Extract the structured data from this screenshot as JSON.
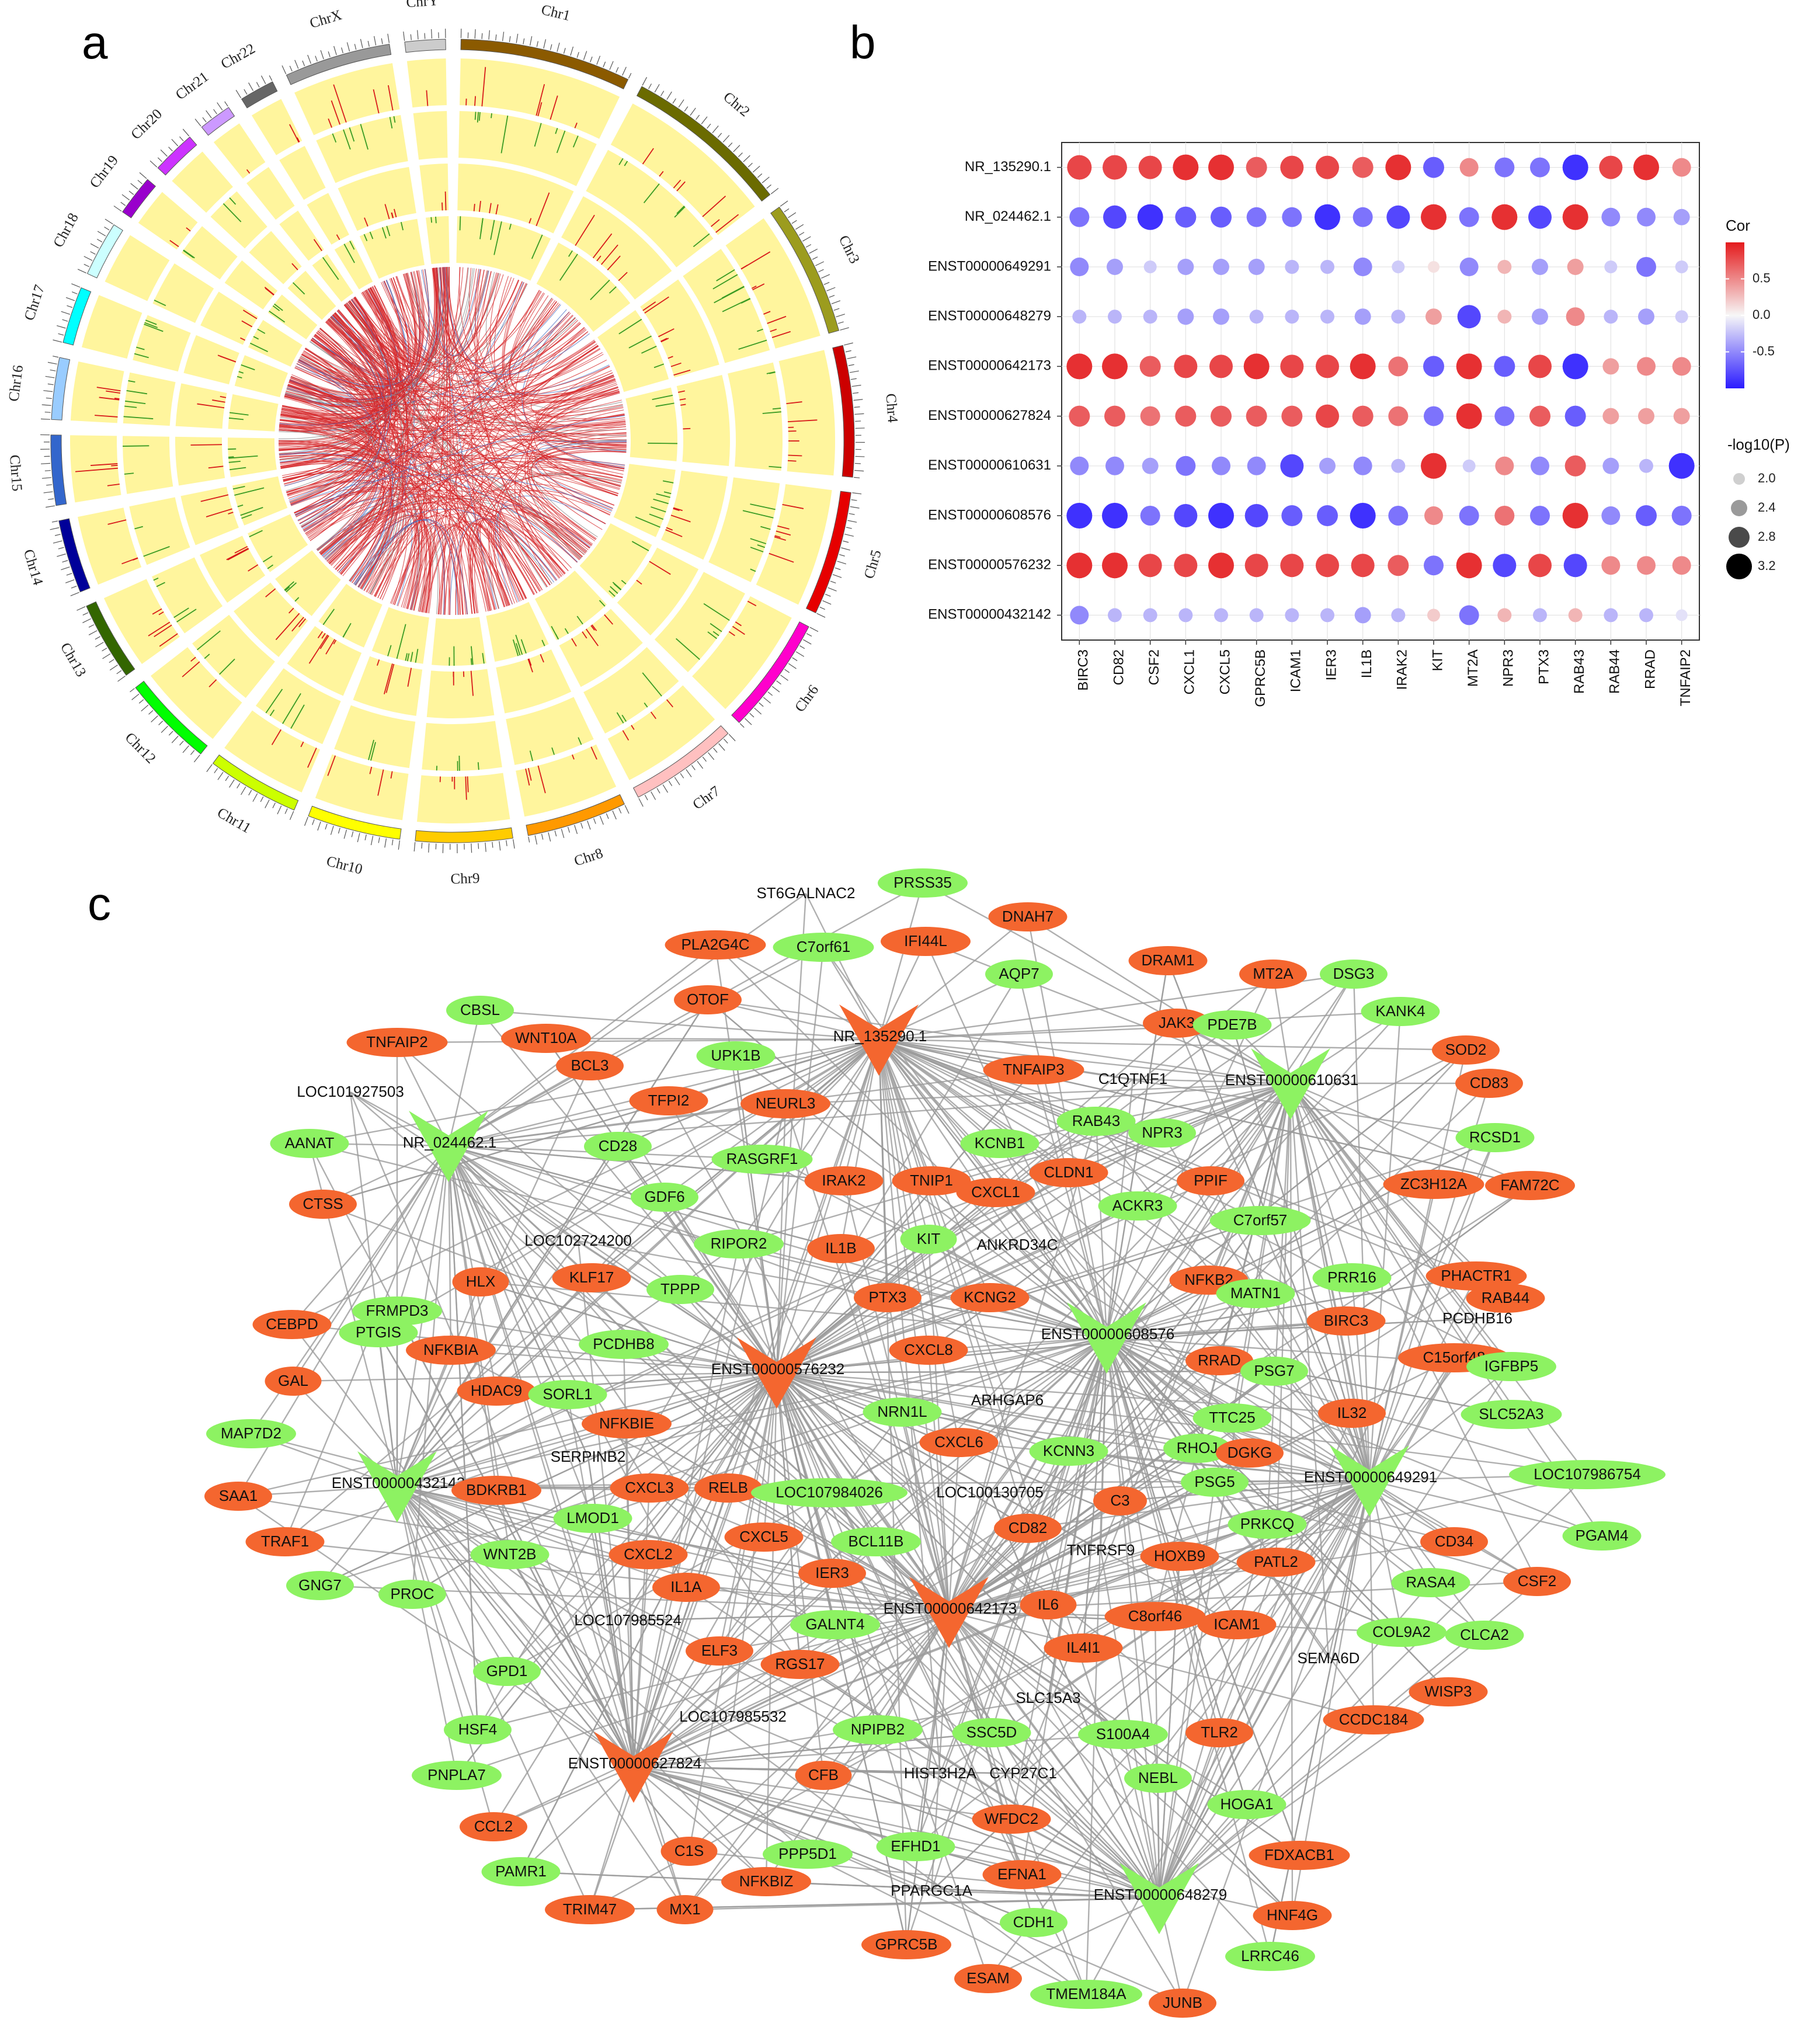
{
  "panels": {
    "a": "a",
    "b": "b",
    "c": "c"
  },
  "circos": {
    "chromosomes": [
      {
        "name": "Chr1",
        "color": "#8B5A00",
        "length": 249
      },
      {
        "name": "Chr2",
        "color": "#6B6B00",
        "length": 243
      },
      {
        "name": "Chr3",
        "color": "#9C9C1E",
        "length": 198
      },
      {
        "name": "Chr4",
        "color": "#CC0000",
        "length": 191
      },
      {
        "name": "Chr5",
        "color": "#E60000",
        "length": 181
      },
      {
        "name": "Chr6",
        "color": "#FF00CC",
        "length": 171
      },
      {
        "name": "Chr7",
        "color": "#FFC0C0",
        "length": 159
      },
      {
        "name": "Chr8",
        "color": "#FF9900",
        "length": 146
      },
      {
        "name": "Chr9",
        "color": "#FFCC00",
        "length": 141
      },
      {
        "name": "Chr10",
        "color": "#FFFF00",
        "length": 136
      },
      {
        "name": "Chr11",
        "color": "#CCFF00",
        "length": 135
      },
      {
        "name": "Chr12",
        "color": "#00FF00",
        "length": 134
      },
      {
        "name": "Chr13",
        "color": "#336600",
        "length": 115
      },
      {
        "name": "Chr14",
        "color": "#000099",
        "length": 107
      },
      {
        "name": "Chr15",
        "color": "#3366CC",
        "length": 102
      },
      {
        "name": "Chr16",
        "color": "#99CCFF",
        "length": 90
      },
      {
        "name": "Chr17",
        "color": "#00FFFF",
        "length": 83
      },
      {
        "name": "Chr18",
        "color": "#CCFFFF",
        "length": 80
      },
      {
        "name": "Chr19",
        "color": "#9900CC",
        "length": 59
      },
      {
        "name": "Chr20",
        "color": "#CC33FF",
        "length": 64
      },
      {
        "name": "Chr21",
        "color": "#CC99FF",
        "length": 48
      },
      {
        "name": "Chr22",
        "color": "#666666",
        "length": 51
      },
      {
        "name": "ChrX",
        "color": "#999999",
        "length": 155
      },
      {
        "name": "ChrY",
        "color": "#CCCCCC",
        "length": 59
      }
    ]
  },
  "chart_data": {
    "type": "heatmap",
    "rows": [
      "NR_135290.1",
      "NR_024462.1",
      "ENST00000649291",
      "ENST00000648279",
      "ENST00000642173",
      "ENST00000627824",
      "ENST00000610631",
      "ENST00000608576",
      "ENST00000576232",
      "ENST00000432142"
    ],
    "columns": [
      "BIRC3",
      "CD82",
      "CSF2",
      "CXCL1",
      "CXCL5",
      "GPRC5B",
      "ICAM1",
      "IER3",
      "IL1B",
      "IRAK2",
      "KIT",
      "MT2A",
      "NPR3",
      "PTX3",
      "RAB43",
      "RAB44",
      "RRAD",
      "TNFAIP2"
    ],
    "cor": [
      [
        0.8,
        0.8,
        0.8,
        0.9,
        0.9,
        0.7,
        0.8,
        0.8,
        0.7,
        0.9,
        -0.7,
        0.5,
        -0.6,
        -0.6,
        -0.9,
        0.8,
        0.9,
        0.5
      ],
      [
        -0.6,
        -0.8,
        -0.9,
        -0.7,
        -0.7,
        -0.6,
        -0.6,
        -0.9,
        -0.6,
        -0.8,
        0.9,
        -0.6,
        0.9,
        -0.8,
        0.9,
        -0.5,
        -0.5,
        -0.4
      ],
      [
        -0.5,
        -0.4,
        -0.2,
        -0.4,
        -0.4,
        -0.4,
        -0.3,
        -0.3,
        -0.5,
        -0.2,
        0.1,
        -0.5,
        0.3,
        -0.4,
        0.4,
        -0.2,
        -0.6,
        -0.2
      ],
      [
        -0.3,
        -0.3,
        -0.3,
        -0.4,
        -0.4,
        -0.3,
        -0.3,
        -0.3,
        -0.4,
        -0.3,
        0.4,
        -0.8,
        0.3,
        -0.4,
        0.5,
        -0.3,
        -0.4,
        -0.2
      ],
      [
        0.9,
        0.9,
        0.7,
        0.8,
        0.8,
        0.9,
        0.8,
        0.8,
        0.9,
        0.6,
        -0.7,
        0.9,
        -0.7,
        0.8,
        -0.9,
        0.4,
        0.5,
        0.5
      ],
      [
        0.7,
        0.7,
        0.6,
        0.7,
        0.7,
        0.7,
        0.7,
        0.8,
        0.7,
        0.6,
        -0.6,
        0.9,
        -0.6,
        0.7,
        -0.7,
        0.4,
        0.4,
        0.4
      ],
      [
        -0.5,
        -0.5,
        -0.4,
        -0.6,
        -0.5,
        -0.5,
        -0.8,
        -0.4,
        -0.5,
        -0.3,
        0.9,
        -0.2,
        0.5,
        -0.5,
        0.7,
        -0.4,
        -0.3,
        -0.9
      ],
      [
        -0.9,
        -0.9,
        -0.6,
        -0.8,
        -0.9,
        -0.8,
        -0.7,
        -0.7,
        -0.9,
        -0.6,
        0.5,
        -0.6,
        0.6,
        -0.6,
        0.9,
        -0.5,
        -0.7,
        -0.6
      ],
      [
        0.9,
        0.9,
        0.8,
        0.8,
        0.9,
        0.8,
        0.8,
        0.8,
        0.8,
        0.7,
        -0.6,
        0.9,
        -0.8,
        0.8,
        -0.8,
        0.5,
        0.5,
        0.5
      ],
      [
        -0.5,
        -0.3,
        -0.3,
        -0.3,
        -0.3,
        -0.3,
        -0.3,
        -0.3,
        -0.4,
        -0.3,
        0.2,
        -0.6,
        0.3,
        -0.3,
        0.3,
        -0.3,
        -0.3,
        -0.1
      ]
    ],
    "neglog10p": [
      [
        3.1,
        3.1,
        3.0,
        3.2,
        3.2,
        2.8,
        3.0,
        3.0,
        2.8,
        3.2,
        2.8,
        2.6,
        2.7,
        2.7,
        3.2,
        3.0,
        3.2,
        2.6
      ],
      [
        2.7,
        3.0,
        3.2,
        2.8,
        2.8,
        2.7,
        2.7,
        3.2,
        2.7,
        3.0,
        3.2,
        2.7,
        3.2,
        3.0,
        3.2,
        2.6,
        2.6,
        2.4
      ],
      [
        2.6,
        2.4,
        2.1,
        2.4,
        2.4,
        2.4,
        2.2,
        2.2,
        2.6,
        2.1,
        2.0,
        2.6,
        2.2,
        2.4,
        2.4,
        2.1,
        2.7,
        2.1
      ],
      [
        2.2,
        2.2,
        2.2,
        2.4,
        2.4,
        2.2,
        2.2,
        2.2,
        2.4,
        2.2,
        2.4,
        3.0,
        2.2,
        2.4,
        2.6,
        2.2,
        2.4,
        2.1
      ],
      [
        3.2,
        3.2,
        2.8,
        3.0,
        3.0,
        3.2,
        3.0,
        3.0,
        3.2,
        2.7,
        2.8,
        3.2,
        2.8,
        3.0,
        3.2,
        2.4,
        2.6,
        2.6
      ],
      [
        2.8,
        2.8,
        2.7,
        2.8,
        2.8,
        2.8,
        2.8,
        3.0,
        2.8,
        2.7,
        2.7,
        3.2,
        2.7,
        2.8,
        2.8,
        2.4,
        2.4,
        2.4
      ],
      [
        2.6,
        2.6,
        2.4,
        2.7,
        2.6,
        2.6,
        3.0,
        2.4,
        2.6,
        2.2,
        3.2,
        2.1,
        2.6,
        2.6,
        2.8,
        2.4,
        2.2,
        3.2
      ],
      [
        3.2,
        3.2,
        2.7,
        3.0,
        3.2,
        3.0,
        2.8,
        2.8,
        3.2,
        2.7,
        2.6,
        2.7,
        2.7,
        2.7,
        3.2,
        2.6,
        2.8,
        2.7
      ],
      [
        3.2,
        3.2,
        3.0,
        3.0,
        3.2,
        3.0,
        3.0,
        3.0,
        3.0,
        2.8,
        2.7,
        3.2,
        3.0,
        3.0,
        3.0,
        2.6,
        2.6,
        2.6
      ],
      [
        2.6,
        2.2,
        2.2,
        2.2,
        2.2,
        2.2,
        2.2,
        2.2,
        2.4,
        2.2,
        2.1,
        2.7,
        2.2,
        2.2,
        2.2,
        2.2,
        2.2,
        2.0
      ]
    ],
    "legend_cor": {
      "title": "Cor",
      "ticks": [
        "0.5",
        "0.0",
        "-0.5"
      ],
      "range": [
        -1,
        1
      ]
    },
    "legend_p": {
      "title": "-log10(P)",
      "ticks": [
        "2.0",
        "2.4",
        "2.8",
        "3.2"
      ]
    },
    "colors": {
      "positive": "#E41A1C",
      "negative": "#2B1BFF",
      "neutral": "#F7F7F7"
    }
  },
  "network": {
    "colors": {
      "up": "#F4662F",
      "down": "#8DF262",
      "edge": "#9B9B9B"
    },
    "hubs": [
      {
        "id": "NR_135290.1",
        "color": "up"
      },
      {
        "id": "NR_024462.1",
        "color": "down"
      },
      {
        "id": "ENST00000610631",
        "color": "down"
      },
      {
        "id": "ENST00000608576",
        "color": "down"
      },
      {
        "id": "ENST00000576232",
        "color": "up"
      },
      {
        "id": "ENST00000432142",
        "color": "down"
      },
      {
        "id": "ENST00000649291",
        "color": "down"
      },
      {
        "id": "ENST00000642173",
        "color": "up"
      },
      {
        "id": "ENST00000627824",
        "color": "up"
      },
      {
        "id": "ENST00000648279",
        "color": "down"
      }
    ],
    "nodes": [
      {
        "label": "ST6GALNAC2",
        "color": "none"
      },
      {
        "label": "PRSS35",
        "color": "down"
      },
      {
        "label": "DNAH7",
        "color": "up"
      },
      {
        "label": "PLA2G4C",
        "color": "up"
      },
      {
        "label": "C7orf61",
        "color": "down"
      },
      {
        "label": "IFI44L",
        "color": "up"
      },
      {
        "label": "AQP7",
        "color": "down"
      },
      {
        "label": "DRAM1",
        "color": "up"
      },
      {
        "label": "MT2A",
        "color": "up"
      },
      {
        "label": "DSG3",
        "color": "down"
      },
      {
        "label": "CBSL",
        "color": "down"
      },
      {
        "label": "OTOF",
        "color": "up"
      },
      {
        "label": "JAK3",
        "color": "up"
      },
      {
        "label": "PDE7B",
        "color": "down"
      },
      {
        "label": "KANK4",
        "color": "down"
      },
      {
        "label": "TNFAIP2",
        "color": "up"
      },
      {
        "label": "WNT10A",
        "color": "up"
      },
      {
        "label": "UPK1B",
        "color": "down"
      },
      {
        "label": "SOD2",
        "color": "up"
      },
      {
        "label": "BCL3",
        "color": "up"
      },
      {
        "label": "TNFAIP3",
        "color": "up"
      },
      {
        "label": "C1QTNF1",
        "color": "none"
      },
      {
        "label": "CD83",
        "color": "up"
      },
      {
        "label": "LOC101927503",
        "color": "none"
      },
      {
        "label": "TFPI2",
        "color": "up"
      },
      {
        "label": "NEURL3",
        "color": "up"
      },
      {
        "label": "RAB43",
        "color": "down"
      },
      {
        "label": "NPR3",
        "color": "down"
      },
      {
        "label": "RCSD1",
        "color": "down"
      },
      {
        "label": "AANAT",
        "color": "down"
      },
      {
        "label": "CD28",
        "color": "down"
      },
      {
        "label": "RASGRF1",
        "color": "down"
      },
      {
        "label": "KCNB1",
        "color": "down"
      },
      {
        "label": "CLDN1",
        "color": "up"
      },
      {
        "label": "ZC3H12A",
        "color": "up"
      },
      {
        "label": "FAM72C",
        "color": "up"
      },
      {
        "label": "CTSS",
        "color": "up"
      },
      {
        "label": "GDF6",
        "color": "down"
      },
      {
        "label": "IRAK2",
        "color": "up"
      },
      {
        "label": "TNIP1",
        "color": "up"
      },
      {
        "label": "CXCL1",
        "color": "up"
      },
      {
        "label": "ACKR3",
        "color": "down"
      },
      {
        "label": "PPIF",
        "color": "up"
      },
      {
        "label": "C7orf57",
        "color": "down"
      },
      {
        "label": "RIPOR2",
        "color": "down"
      },
      {
        "label": "KIT",
        "color": "down"
      },
      {
        "label": "ANKRD34C",
        "color": "none"
      },
      {
        "label": "IL1B",
        "color": "up"
      },
      {
        "label": "LOC102724200",
        "color": "none"
      },
      {
        "label": "NFKB2",
        "color": "up"
      },
      {
        "label": "PRR16",
        "color": "down"
      },
      {
        "label": "PHACTR1",
        "color": "up"
      },
      {
        "label": "RAB44",
        "color": "up"
      },
      {
        "label": "HLX",
        "color": "up"
      },
      {
        "label": "KLF17",
        "color": "up"
      },
      {
        "label": "TPPP",
        "color": "down"
      },
      {
        "label": "FRMPD3",
        "color": "down"
      },
      {
        "label": "PTX3",
        "color": "up"
      },
      {
        "label": "KCNG2",
        "color": "up"
      },
      {
        "label": "MATN1",
        "color": "down"
      },
      {
        "label": "BIRC3",
        "color": "up"
      },
      {
        "label": "PCDHB16",
        "color": "none"
      },
      {
        "label": "CEBPD",
        "color": "up"
      },
      {
        "label": "PTGIS",
        "color": "down"
      },
      {
        "label": "NFKBIA",
        "color": "up"
      },
      {
        "label": "PCDHB8",
        "color": "down"
      },
      {
        "label": "CXCL8",
        "color": "up"
      },
      {
        "label": "RRAD",
        "color": "up"
      },
      {
        "label": "C15orf48",
        "color": "up"
      },
      {
        "label": "IGFBP5",
        "color": "down"
      },
      {
        "label": "GAL",
        "color": "up"
      },
      {
        "label": "HDAC9",
        "color": "up"
      },
      {
        "label": "SORL1",
        "color": "down"
      },
      {
        "label": "PSG7",
        "color": "down"
      },
      {
        "label": "ARHGAP6",
        "color": "none"
      },
      {
        "label": "NRN1L",
        "color": "down"
      },
      {
        "label": "TTC25",
        "color": "down"
      },
      {
        "label": "IL32",
        "color": "up"
      },
      {
        "label": "SLC52A3",
        "color": "down"
      },
      {
        "label": "MAP7D2",
        "color": "down"
      },
      {
        "label": "NFKBIE",
        "color": "up"
      },
      {
        "label": "CXCL6",
        "color": "up"
      },
      {
        "label": "KCNN3",
        "color": "down"
      },
      {
        "label": "RHOJ",
        "color": "down"
      },
      {
        "label": "DGKG",
        "color": "up"
      },
      {
        "label": "SERPINB2",
        "color": "none"
      },
      {
        "label": "LOC107986754",
        "color": "down"
      },
      {
        "label": "SAA1",
        "color": "up"
      },
      {
        "label": "BDKRB1",
        "color": "up"
      },
      {
        "label": "CXCL3",
        "color": "up"
      },
      {
        "label": "RELB",
        "color": "up"
      },
      {
        "label": "LOC107984026",
        "color": "down"
      },
      {
        "label": "LOC100130705",
        "color": "none"
      },
      {
        "label": "C3",
        "color": "up"
      },
      {
        "label": "PSG5",
        "color": "down"
      },
      {
        "label": "TRAF1",
        "color": "up"
      },
      {
        "label": "LMOD1",
        "color": "down"
      },
      {
        "label": "CXCL5",
        "color": "up"
      },
      {
        "label": "BCL11B",
        "color": "down"
      },
      {
        "label": "CD82",
        "color": "up"
      },
      {
        "label": "PRKCQ",
        "color": "down"
      },
      {
        "label": "CD34",
        "color": "up"
      },
      {
        "label": "PGAM4",
        "color": "down"
      },
      {
        "label": "GNG7",
        "color": "down"
      },
      {
        "label": "WNT2B",
        "color": "down"
      },
      {
        "label": "CXCL2",
        "color": "up"
      },
      {
        "label": "IER3",
        "color": "up"
      },
      {
        "label": "TNFRSF9",
        "color": "none"
      },
      {
        "label": "HOXB9",
        "color": "up"
      },
      {
        "label": "PATL2",
        "color": "up"
      },
      {
        "label": "RASA4",
        "color": "down"
      },
      {
        "label": "CSF2",
        "color": "up"
      },
      {
        "label": "PROC",
        "color": "down"
      },
      {
        "label": "IL1A",
        "color": "up"
      },
      {
        "label": "LOC107985524",
        "color": "none"
      },
      {
        "label": "IL6",
        "color": "up"
      },
      {
        "label": "C8orf46",
        "color": "up"
      },
      {
        "label": "GALNT4",
        "color": "down"
      },
      {
        "label": "COL9A2",
        "color": "down"
      },
      {
        "label": "CLCA2",
        "color": "down"
      },
      {
        "label": "ELF3",
        "color": "up"
      },
      {
        "label": "RGS17",
        "color": "up"
      },
      {
        "label": "IL4I1",
        "color": "up"
      },
      {
        "label": "ICAM1",
        "color": "up"
      },
      {
        "label": "GPD1",
        "color": "down"
      },
      {
        "label": "SEMA6D",
        "color": "none"
      },
      {
        "label": "WISP3",
        "color": "up"
      },
      {
        "label": "SLC15A3",
        "color": "none"
      },
      {
        "label": "LOC107985532",
        "color": "none"
      },
      {
        "label": "HSF4",
        "color": "down"
      },
      {
        "label": "NPIPB2",
        "color": "down"
      },
      {
        "label": "SSC5D",
        "color": "down"
      },
      {
        "label": "S100A4",
        "color": "down"
      },
      {
        "label": "TLR2",
        "color": "up"
      },
      {
        "label": "CCDC184",
        "color": "up"
      },
      {
        "label": "PNPLA7",
        "color": "down"
      },
      {
        "label": "CFB",
        "color": "up"
      },
      {
        "label": "HIST3H2A",
        "color": "none"
      },
      {
        "label": "CYP27C1",
        "color": "none"
      },
      {
        "label": "NEBL",
        "color": "down"
      },
      {
        "label": "HOGA1",
        "color": "down"
      },
      {
        "label": "CCL2",
        "color": "up"
      },
      {
        "label": "WFDC2",
        "color": "up"
      },
      {
        "label": "FDXACB1",
        "color": "up"
      },
      {
        "label": "C1S",
        "color": "up"
      },
      {
        "label": "PPP5D1",
        "color": "down"
      },
      {
        "label": "EFHD1",
        "color": "down"
      },
      {
        "label": "PAMR1",
        "color": "down"
      },
      {
        "label": "NFKBIZ",
        "color": "up"
      },
      {
        "label": "EFNA1",
        "color": "up"
      },
      {
        "label": "PPARGC1A",
        "color": "none"
      },
      {
        "label": "TRIM47",
        "color": "up"
      },
      {
        "label": "MX1",
        "color": "up"
      },
      {
        "label": "HNF4G",
        "color": "up"
      },
      {
        "label": "CDH1",
        "color": "down"
      },
      {
        "label": "GPRC5B",
        "color": "up"
      },
      {
        "label": "LRRC46",
        "color": "down"
      },
      {
        "label": "ESAM",
        "color": "up"
      },
      {
        "label": "TMEM184A",
        "color": "down"
      },
      {
        "label": "JUNB",
        "color": "up"
      }
    ]
  }
}
